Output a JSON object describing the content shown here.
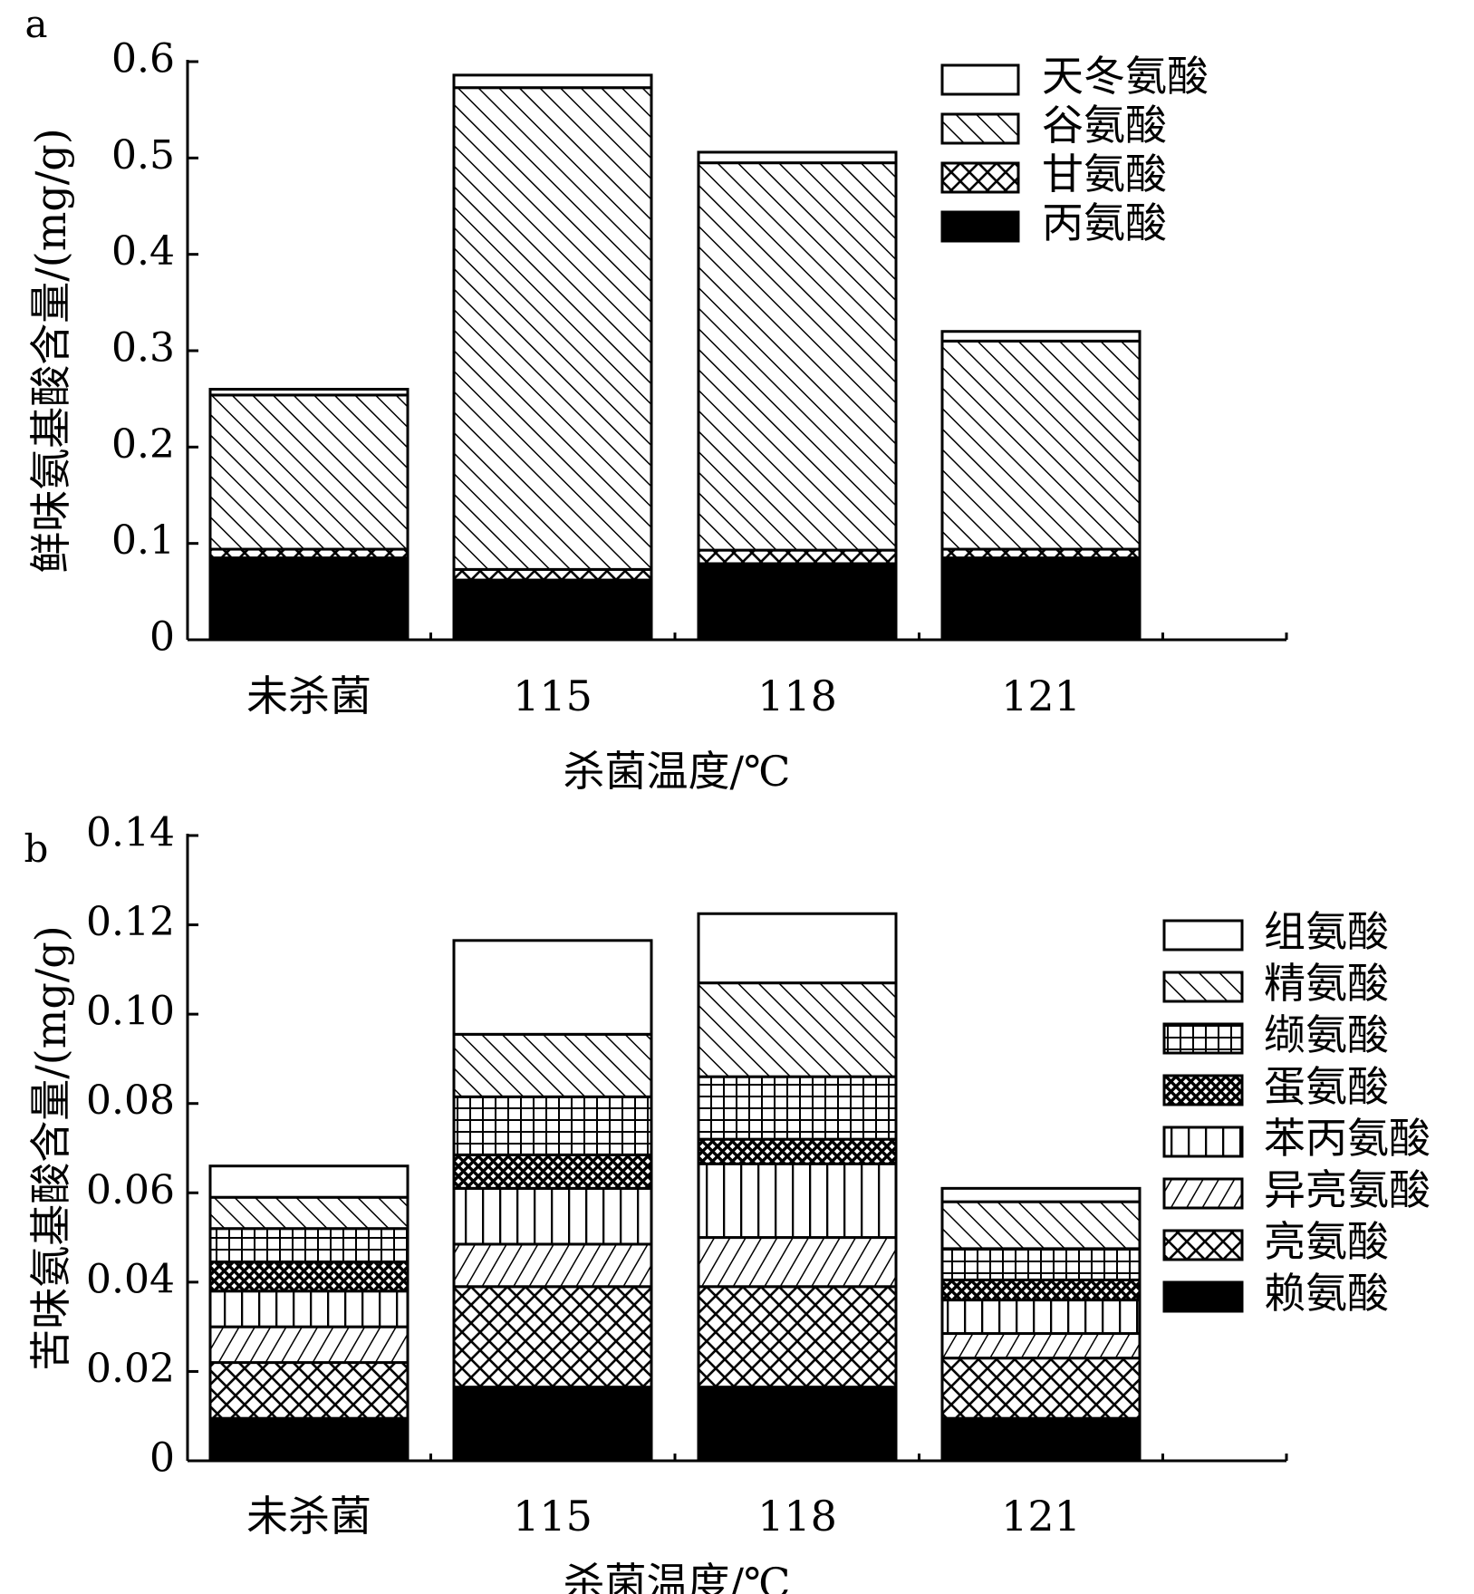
{
  "chart_data": [
    {
      "panel_label": "a",
      "type": "bar",
      "stacked": true,
      "xlabel": "杀菌温度/℃",
      "ylabel": "鲜味氨基酸含量/(mg/g)",
      "categories": [
        "未杀菌",
        "115",
        "118",
        "121"
      ],
      "ylim": [
        0,
        0.6
      ],
      "yticks": [
        "0",
        "0.1",
        "0.2",
        "0.3",
        "0.4",
        "0.5",
        "0.6"
      ],
      "legend_position": "top-right",
      "series": [
        {
          "name": "丙氨酸",
          "pattern": "solid",
          "values": [
            0.085,
            0.062,
            0.079,
            0.085
          ]
        },
        {
          "name": "甘氨酸",
          "pattern": "crosshatch",
          "values": [
            0.009,
            0.011,
            0.014,
            0.009
          ]
        },
        {
          "name": "谷氨酸",
          "pattern": "diagonal",
          "values": [
            0.16,
            0.5,
            0.402,
            0.216
          ]
        },
        {
          "name": "天冬氨酸",
          "pattern": "white",
          "values": [
            0.006,
            0.013,
            0.011,
            0.01
          ]
        }
      ]
    },
    {
      "panel_label": "b",
      "type": "bar",
      "stacked": true,
      "xlabel": "杀菌温度/℃",
      "ylabel": "苦味氨基酸含量/(mg/g)",
      "categories": [
        "未杀菌",
        "115",
        "118",
        "121"
      ],
      "ylim": [
        0,
        0.14
      ],
      "yticks": [
        "0",
        "0.02",
        "0.04",
        "0.06",
        "0.08",
        "0.10",
        "0.12",
        "0.14"
      ],
      "legend_position": "right",
      "series": [
        {
          "name": "赖氨酸",
          "pattern": "solid",
          "values": [
            0.0095,
            0.0165,
            0.0165,
            0.0095
          ]
        },
        {
          "name": "亮氨酸",
          "pattern": "crosshatch",
          "values": [
            0.0125,
            0.0225,
            0.0225,
            0.0135
          ]
        },
        {
          "name": "异亮氨酸",
          "pattern": "backdiag",
          "values": [
            0.008,
            0.0095,
            0.011,
            0.0055
          ]
        },
        {
          "name": "苯丙氨酸",
          "pattern": "vertical",
          "values": [
            0.008,
            0.0125,
            0.0165,
            0.0075
          ]
        },
        {
          "name": "蛋氨酸",
          "pattern": "densecross",
          "values": [
            0.0065,
            0.0075,
            0.0055,
            0.0045
          ]
        },
        {
          "name": "缬氨酸",
          "pattern": "grid",
          "values": [
            0.0075,
            0.013,
            0.014,
            0.007
          ]
        },
        {
          "name": "精氨酸",
          "pattern": "diagonal",
          "values": [
            0.007,
            0.014,
            0.021,
            0.0105
          ]
        },
        {
          "name": "组氨酸",
          "pattern": "white",
          "values": [
            0.007,
            0.021,
            0.0155,
            0.003
          ]
        }
      ]
    }
  ]
}
